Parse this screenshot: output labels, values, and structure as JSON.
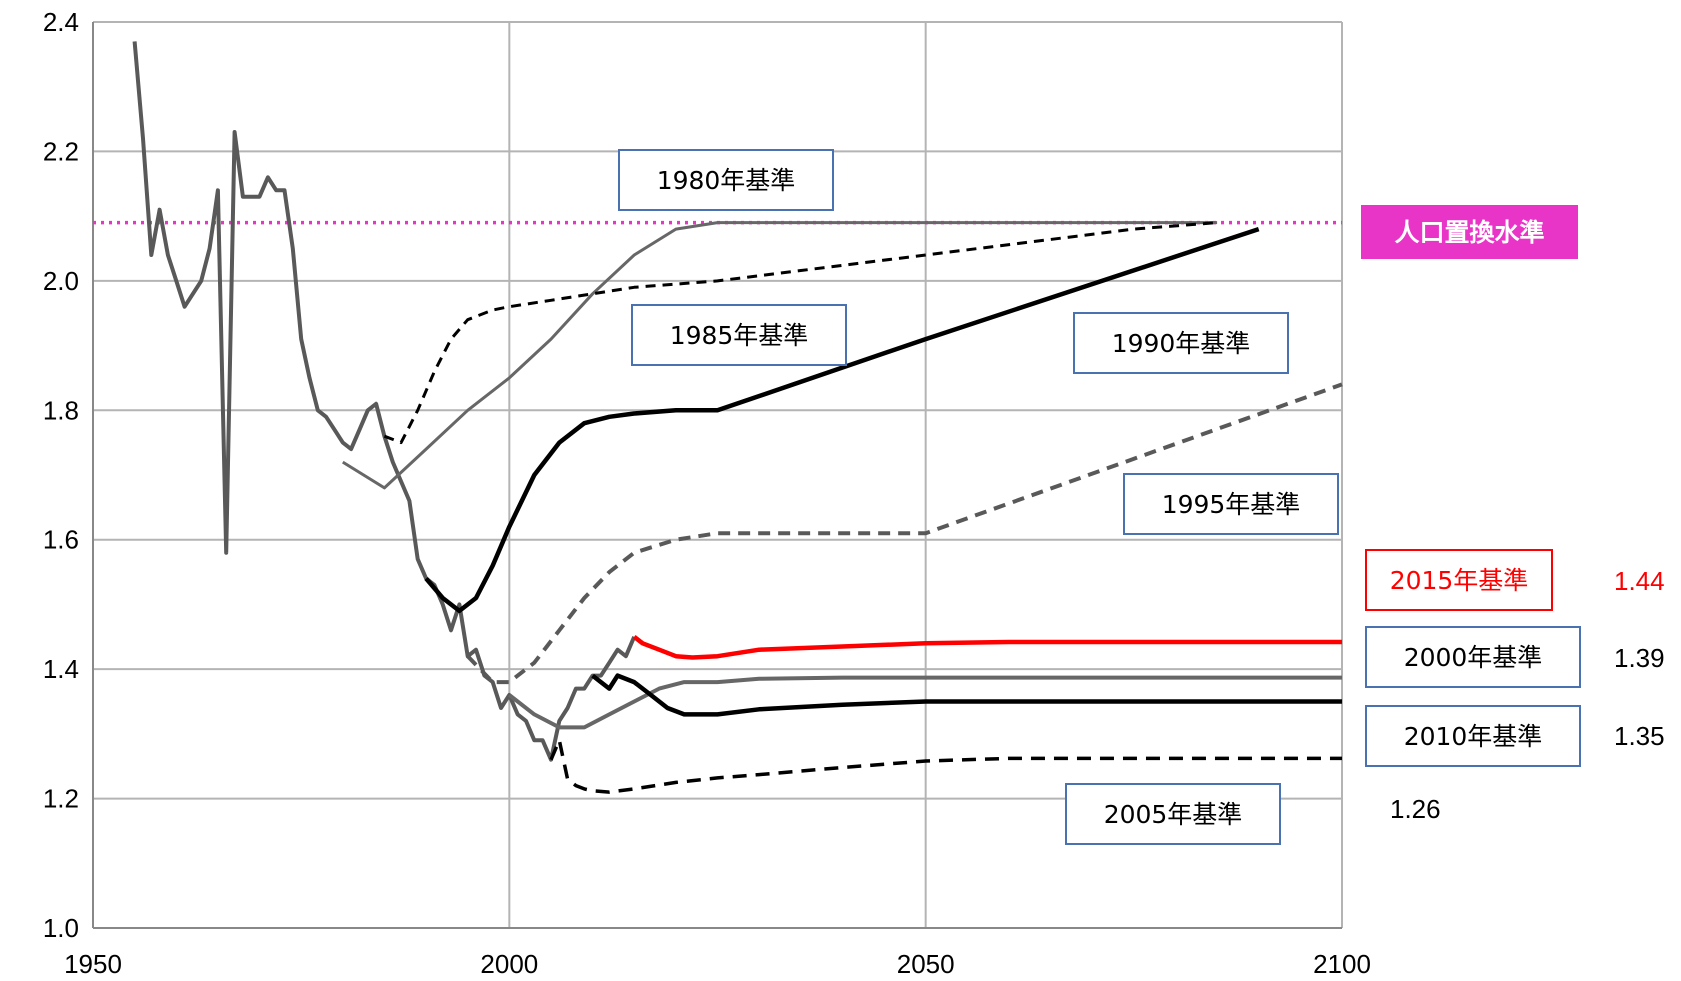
{
  "chart_data": {
    "type": "line",
    "xlim": [
      1950,
      2100
    ],
    "ylim": [
      1.0,
      2.4
    ],
    "xticks": [
      "1950",
      "2000",
      "2050",
      "2100"
    ],
    "yticks": [
      "1.0",
      "1.2",
      "1.4",
      "1.6",
      "1.8",
      "2.0",
      "2.2",
      "2.4"
    ],
    "grid": true,
    "replacement_level": {
      "label": "人口置換水準",
      "value": 2.09,
      "color": "#e934c8"
    },
    "series": [
      {
        "name": "",
        "key": "actual",
        "color": "#595959",
        "width": 4,
        "dash": "",
        "x": [
          1955,
          1956,
          1957,
          1958,
          1959,
          1960,
          1961,
          1962,
          1963,
          1964,
          1965,
          1966,
          1967,
          1968,
          1969,
          1970,
          1971,
          1972,
          1973,
          1974,
          1975,
          1976,
          1977,
          1978,
          1979,
          1980,
          1981,
          1982,
          1983,
          1984,
          1985,
          1986,
          1987,
          1988,
          1989,
          1990,
          1991,
          1992,
          1993,
          1994,
          1995,
          1996,
          1997,
          1998,
          1999,
          2000,
          2001,
          2002,
          2003,
          2004,
          2005,
          2006,
          2007,
          2008,
          2009,
          2010,
          2011,
          2012,
          2013,
          2014,
          2015
        ],
        "y": [
          2.37,
          2.22,
          2.04,
          2.11,
          2.04,
          2.0,
          1.96,
          1.98,
          2.0,
          2.05,
          2.14,
          1.58,
          2.23,
          2.13,
          2.13,
          2.13,
          2.16,
          2.14,
          2.14,
          2.05,
          1.91,
          1.85,
          1.8,
          1.79,
          1.77,
          1.75,
          1.74,
          1.77,
          1.8,
          1.81,
          1.76,
          1.72,
          1.69,
          1.66,
          1.57,
          1.54,
          1.53,
          1.5,
          1.46,
          1.5,
          1.42,
          1.43,
          1.39,
          1.38,
          1.34,
          1.36,
          1.33,
          1.32,
          1.29,
          1.29,
          1.26,
          1.32,
          1.34,
          1.37,
          1.37,
          1.39,
          1.39,
          1.41,
          1.43,
          1.42,
          1.45
        ]
      },
      {
        "name": "1980年基準",
        "color": "#676767",
        "width": 3,
        "dash": "",
        "x": [
          1980,
          1985,
          1990,
          1995,
          2000,
          2005,
          2010,
          2015,
          2020,
          2025,
          2050,
          2085
        ],
        "y": [
          1.72,
          1.68,
          1.74,
          1.8,
          1.85,
          1.91,
          1.98,
          2.04,
          2.08,
          2.09,
          2.09,
          2.09
        ]
      },
      {
        "name": "1985年基準",
        "color": "#000000",
        "width": 3,
        "dash": "10,7",
        "x": [
          1985,
          1987,
          1989,
          1991,
          1993,
          1995,
          1998,
          2000,
          2005,
          2010,
          2015,
          2025,
          2050,
          2075,
          2085
        ],
        "y": [
          1.76,
          1.75,
          1.8,
          1.86,
          1.91,
          1.94,
          1.955,
          1.96,
          1.97,
          1.98,
          1.99,
          2.0,
          2.04,
          2.08,
          2.09
        ]
      },
      {
        "name": "1990年基準",
        "color": "#000000",
        "width": 4.5,
        "dash": "",
        "x": [
          1990,
          1992,
          1994,
          1996,
          1998,
          2000,
          2003,
          2006,
          2009,
          2012,
          2015,
          2020,
          2025,
          2050,
          2090
        ],
        "y": [
          1.54,
          1.51,
          1.49,
          1.51,
          1.56,
          1.62,
          1.7,
          1.75,
          1.78,
          1.79,
          1.795,
          1.8,
          1.8,
          1.91,
          2.08
        ]
      },
      {
        "name": "1995年基準",
        "color": "#595959",
        "width": 4,
        "dash": "12,8",
        "x": [
          1995,
          1998,
          2000,
          2003,
          2006,
          2009,
          2012,
          2015,
          2020,
          2025,
          2030,
          2050,
          2100
        ],
        "y": [
          1.42,
          1.38,
          1.38,
          1.41,
          1.46,
          1.51,
          1.55,
          1.58,
          1.6,
          1.61,
          1.61,
          1.61,
          1.84
        ]
      },
      {
        "name": "2000年基準",
        "color": "#676767",
        "width": 4,
        "dash": "",
        "x": [
          2000,
          2003,
          2006,
          2009,
          2012,
          2015,
          2018,
          2021,
          2025,
          2030,
          2040,
          2050,
          2100
        ],
        "y": [
          1.36,
          1.33,
          1.31,
          1.31,
          1.33,
          1.35,
          1.37,
          1.38,
          1.38,
          1.385,
          1.387,
          1.387,
          1.387
        ]
      },
      {
        "name": "2005年基準",
        "color": "#000000",
        "width": 3.5,
        "dash": "14,9",
        "x": [
          2005,
          2006,
          2007,
          2008,
          2009,
          2010,
          2012,
          2015,
          2020,
          2025,
          2030,
          2040,
          2050,
          2060,
          2100
        ],
        "y": [
          1.26,
          1.29,
          1.23,
          1.22,
          1.215,
          1.212,
          1.21,
          1.215,
          1.225,
          1.232,
          1.237,
          1.248,
          1.258,
          1.262,
          1.262
        ]
      },
      {
        "name": "2010年基準",
        "color": "#000000",
        "width": 4.5,
        "dash": "",
        "x": [
          2010,
          2011,
          2012,
          2013,
          2015,
          2017,
          2019,
          2021,
          2023,
          2025,
          2030,
          2040,
          2050,
          2100
        ],
        "y": [
          1.39,
          1.38,
          1.37,
          1.39,
          1.38,
          1.36,
          1.34,
          1.33,
          1.33,
          1.33,
          1.338,
          1.345,
          1.35,
          1.35
        ]
      },
      {
        "name": "2015年基準",
        "color": "#ff0000",
        "width": 4.5,
        "dash": "",
        "x": [
          2015,
          2016,
          2018,
          2020,
          2022,
          2025,
          2030,
          2040,
          2050,
          2060,
          2100
        ],
        "y": [
          1.45,
          1.44,
          1.43,
          1.42,
          1.418,
          1.42,
          1.43,
          1.435,
          1.44,
          1.442,
          1.442
        ]
      }
    ],
    "box_labels": [
      {
        "key": "l1980",
        "text": "1980年基準",
        "color": "#000000",
        "border": "#4a72b0"
      },
      {
        "key": "l1985",
        "text": "1985年基準",
        "color": "#000000",
        "border": "#4a72b0"
      },
      {
        "key": "l1990",
        "text": "1990年基準",
        "color": "#000000",
        "border": "#4a72b0"
      },
      {
        "key": "l1995",
        "text": "1995年基準",
        "color": "#000000",
        "border": "#4a72b0"
      },
      {
        "key": "l2015",
        "text": "2015年基準",
        "color": "#ff0000",
        "border": "#ff0000"
      },
      {
        "key": "l2000",
        "text": "2000年基準",
        "color": "#000000",
        "border": "#4a72b0"
      },
      {
        "key": "l2010",
        "text": "2010年基準",
        "color": "#000000",
        "border": "#4a72b0"
      },
      {
        "key": "l2005",
        "text": "2005年基準",
        "color": "#000000",
        "border": "#4a72b0"
      }
    ],
    "end_values": [
      {
        "key": "v2015",
        "text": "1.44",
        "color": "#ff0000"
      },
      {
        "key": "v2000",
        "text": "1.39",
        "color": "#000000"
      },
      {
        "key": "v2010",
        "text": "1.35",
        "color": "#000000"
      },
      {
        "key": "v2005",
        "text": "1.26",
        "color": "#000000"
      }
    ]
  }
}
